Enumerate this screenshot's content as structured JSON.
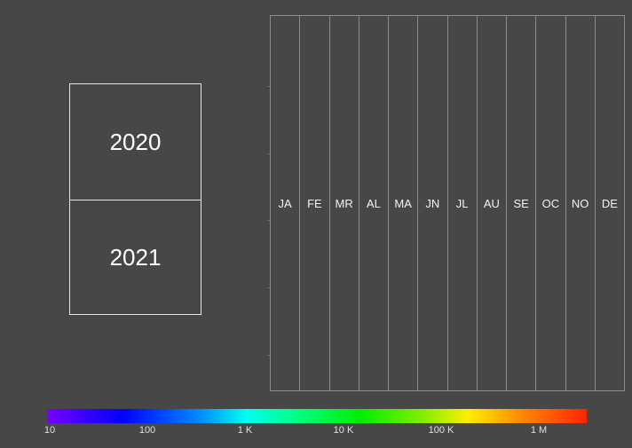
{
  "years": [
    "2020",
    "2021"
  ],
  "months": [
    "JA",
    "FE",
    "MR",
    "AL",
    "MA",
    "JN",
    "JL",
    "AU",
    "SE",
    "OC",
    "NO",
    "DE"
  ],
  "colorbar": {
    "labels": [
      "10",
      "100",
      "1 K",
      "10 K",
      "100 K",
      "1 M"
    ],
    "scale": "log",
    "colors": [
      "#7700ff",
      "#0000ff",
      "#0088ff",
      "#00ffee",
      "#00ff88",
      "#00ee00",
      "#88ee00",
      "#ffee00",
      "#ff8800",
      "#ff2200"
    ]
  },
  "theme": {
    "background": "#474747",
    "border": "#e6e6e6"
  }
}
